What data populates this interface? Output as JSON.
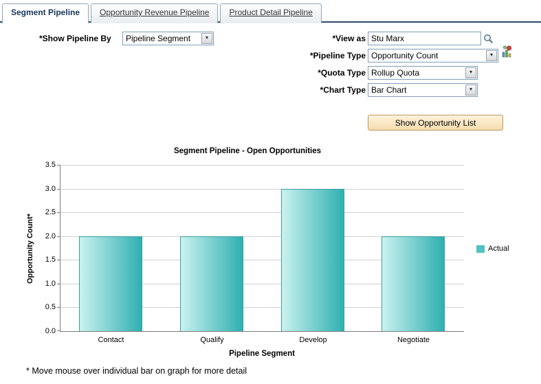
{
  "tabs": [
    {
      "label": "Segment Pipeline"
    },
    {
      "label": "Opportunity Revenue Pipeline"
    },
    {
      "label": "Product Detail Pipeline"
    }
  ],
  "form": {
    "show_pipeline_by_label": "*Show Pipeline By",
    "show_pipeline_by_value": "Pipeline Segment",
    "view_as_label": "*View as",
    "view_as_value": "Stu Marx",
    "pipeline_type_label": "*Pipeline Type",
    "pipeline_type_value": "Opportunity Count",
    "quota_type_label": "*Quota Type",
    "quota_type_value": "Rollup Quota",
    "chart_type_label": "*Chart Type",
    "chart_type_value": "Bar Chart",
    "show_opportunity_list_label": "Show Opportunity List",
    "dropdown_arrow": "▼"
  },
  "chart_data": {
    "type": "bar",
    "title": "Segment Pipeline - Open Opportunities",
    "categories": [
      "Contact",
      "Qualify",
      "Develop",
      "Negotiate"
    ],
    "values": [
      2,
      2,
      3,
      2
    ],
    "xlabel": "Pipeline Segment",
    "ylabel": "Opportunity Count*",
    "ylim": [
      0,
      3.5
    ],
    "yticks": [
      0,
      0.5,
      1,
      1.5,
      2,
      2.5,
      3,
      3.5
    ],
    "grid": true,
    "legend": {
      "label": "Actual",
      "color": "#52c2c2",
      "position": "right"
    },
    "bar_color_start": "#c9f2f0",
    "bar_color_end": "#2fb0b0"
  },
  "footnote": "* Move mouse over individual bar on graph for more detail"
}
